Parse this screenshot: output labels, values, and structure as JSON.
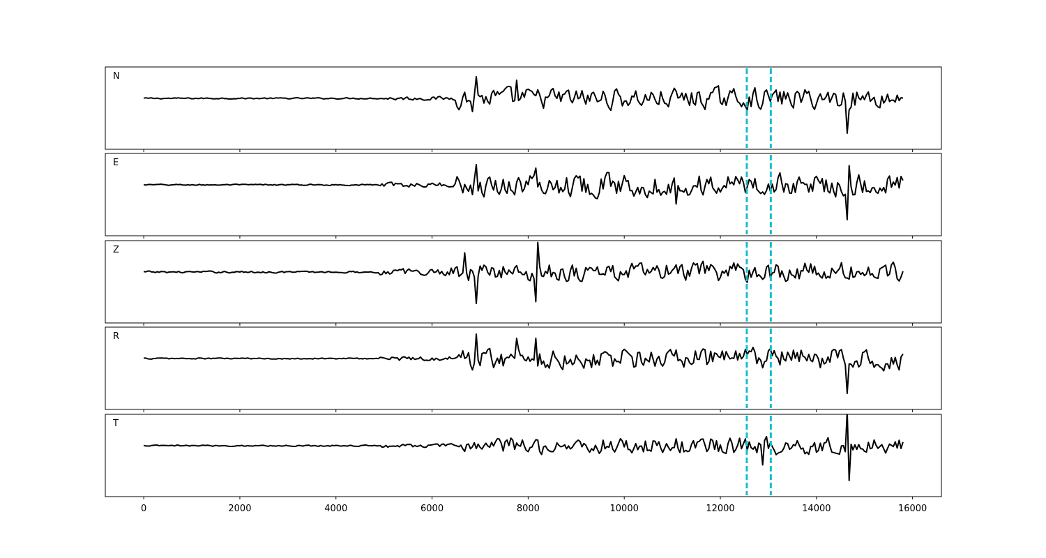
{
  "chart_data": {
    "type": "line",
    "xlim": [
      -800,
      16600
    ],
    "x_ticks": [
      0,
      2000,
      4000,
      6000,
      8000,
      10000,
      12000,
      14000,
      16000
    ],
    "x_tick_labels": [
      "0",
      "2000",
      "4000",
      "6000",
      "8000",
      "10000",
      "12000",
      "14000",
      "16000"
    ],
    "grid": false,
    "marker_lines": {
      "color": "#17becf",
      "style": "dashed",
      "x": [
        12550,
        13050
      ]
    },
    "trace_color": "#000000",
    "panels": [
      {
        "label": "N",
        "x_end": 15800,
        "noise_onset": 5000,
        "signal_onset": 6500,
        "background": 0.02,
        "noise_level": 0.06,
        "signal_level": 0.32,
        "spikes": [
          {
            "x": 6920,
            "y": 0.62
          },
          {
            "x": 6860,
            "y": -0.38
          },
          {
            "x": 7780,
            "y": 0.52
          },
          {
            "x": 14650,
            "y": -1.0
          }
        ]
      },
      {
        "label": "E",
        "x_end": 15800,
        "noise_onset": 4900,
        "signal_onset": 6500,
        "background": 0.02,
        "noise_level": 0.07,
        "signal_level": 0.35,
        "spikes": [
          {
            "x": 6920,
            "y": 0.58
          },
          {
            "x": 8150,
            "y": 0.48
          },
          {
            "x": 11070,
            "y": -0.55
          },
          {
            "x": 14650,
            "y": -1.0
          },
          {
            "x": 14700,
            "y": 0.55
          }
        ]
      },
      {
        "label": "Z",
        "x_end": 15800,
        "noise_onset": 4900,
        "signal_onset": 6400,
        "background": 0.03,
        "noise_level": 0.1,
        "signal_level": 0.3,
        "spikes": [
          {
            "x": 6700,
            "y": 0.55
          },
          {
            "x": 6920,
            "y": -0.9
          },
          {
            "x": 8200,
            "y": 0.85
          },
          {
            "x": 8170,
            "y": -0.85
          }
        ]
      },
      {
        "label": "R",
        "x_end": 15800,
        "noise_onset": 4900,
        "signal_onset": 6500,
        "background": 0.02,
        "noise_level": 0.07,
        "signal_level": 0.33,
        "spikes": [
          {
            "x": 6920,
            "y": 0.7
          },
          {
            "x": 7780,
            "y": 0.58
          },
          {
            "x": 8150,
            "y": 0.58
          },
          {
            "x": 14650,
            "y": -1.0
          }
        ]
      },
      {
        "label": "T",
        "x_end": 15800,
        "noise_onset": 4900,
        "signal_onset": 6600,
        "background": 0.02,
        "noise_level": 0.06,
        "signal_level": 0.28,
        "spikes": [
          {
            "x": 14640,
            "y": 1.0
          },
          {
            "x": 14680,
            "y": -1.0
          },
          {
            "x": 12870,
            "y": 0.45
          },
          {
            "x": 12900,
            "y": -0.55
          }
        ]
      }
    ]
  }
}
